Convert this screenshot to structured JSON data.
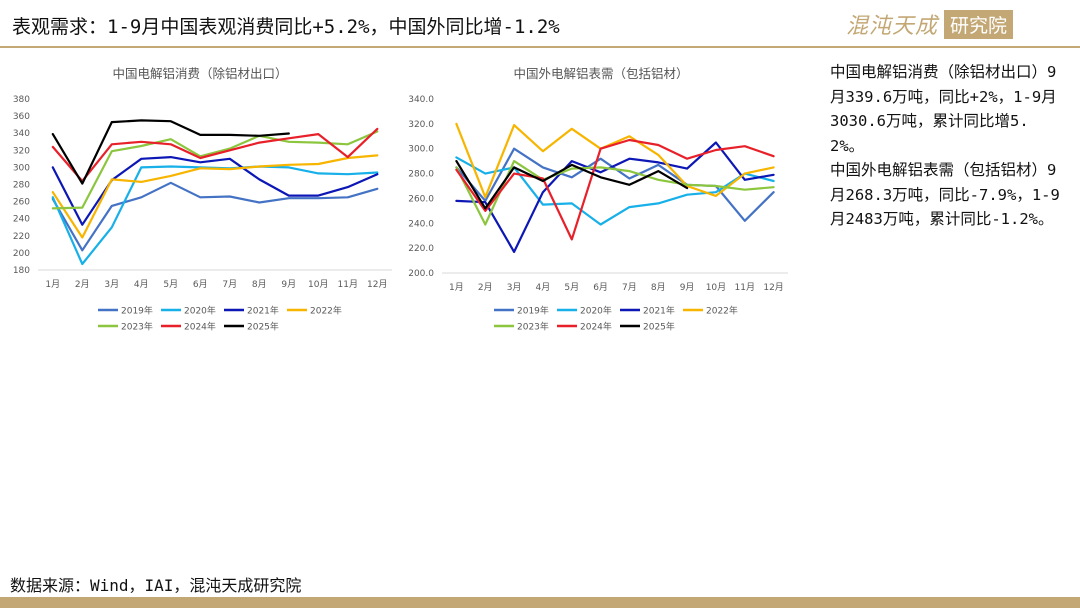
{
  "header": {
    "title": "表观需求：1-9月中国表观消费同比+5.2%，中国外同比增-1.2%",
    "brand_name": "混沌天成",
    "brand_box": "研究院"
  },
  "side_text": {
    "para1": "中国电解铝消费（除铝材出口）9月339.6万吨，同比+2%，1-9月3030.6万吨，累计同比增5.2%。",
    "para2": "中国外电解铝表需（包括铝材）9月268.3万吨，同比-7.9%，1-9月2483万吨，累计同比-1.2%。"
  },
  "footer": {
    "source": "数据来源：Wind，IAI，混沌天成研究院"
  },
  "colors": {
    "2019年": "#4472c4",
    "2020年": "#17b0e8",
    "2021年": "#0c17b5",
    "2022年": "#f7b500",
    "2023年": "#8cc63f",
    "2024年": "#e8202a",
    "2025年": "#000000",
    "brand": "#c3a875"
  },
  "chart_data": [
    {
      "type": "line",
      "title": "中国电解铝消费（除铝材出口）",
      "categories": [
        "1月",
        "2月",
        "3月",
        "4月",
        "5月",
        "6月",
        "7月",
        "8月",
        "9月",
        "10月",
        "11月",
        "12月"
      ],
      "ylim": [
        180,
        380
      ],
      "yticks": [
        "180",
        "200",
        "220",
        "240",
        "260",
        "280",
        "300",
        "320",
        "340",
        "360",
        "380"
      ],
      "grid": false,
      "legend": "bottom",
      "series": [
        {
          "name": "2019年",
          "values": [
            263,
            203,
            255,
            265,
            282,
            265,
            266,
            259,
            264,
            264,
            265,
            275
          ]
        },
        {
          "name": "2020年",
          "values": [
            265,
            187,
            230,
            300,
            301,
            300,
            299,
            301,
            300,
            293,
            292,
            294
          ]
        },
        {
          "name": "2021年",
          "values": [
            300,
            233,
            285,
            310,
            312,
            306,
            310,
            286,
            267,
            267,
            277,
            292
          ]
        },
        {
          "name": "2022年",
          "values": [
            271,
            218,
            286,
            283,
            290,
            299,
            298,
            301,
            303,
            304,
            311,
            314
          ]
        },
        {
          "name": "2023年",
          "values": [
            252,
            253,
            319,
            325,
            333,
            313,
            322,
            337,
            330,
            329,
            327,
            342
          ]
        },
        {
          "name": "2024年",
          "values": [
            324,
            284,
            327,
            330,
            327,
            311,
            320,
            329,
            334,
            339,
            312,
            345
          ]
        },
        {
          "name": "2025年",
          "values": [
            339,
            281,
            353,
            355,
            354,
            338,
            338,
            337,
            339.6,
            null,
            null,
            null
          ]
        }
      ]
    },
    {
      "type": "line",
      "title": "中国外电解铝表需（包括铝材）",
      "categories": [
        "1月",
        "2月",
        "3月",
        "4月",
        "5月",
        "6月",
        "7月",
        "8月",
        "9月",
        "10月",
        "11月",
        "12月"
      ],
      "ylim": [
        200,
        340
      ],
      "yticks": [
        "200.0",
        "220.0",
        "240.0",
        "260.0",
        "280.0",
        "300.0",
        "320.0",
        "340.0"
      ],
      "grid": false,
      "legend": "bottom",
      "series": [
        {
          "name": "2019年",
          "values": [
            285,
            258,
            300,
            285,
            277,
            292,
            276,
            287,
            271,
            270,
            242,
            265
          ]
        },
        {
          "name": "2020年",
          "values": [
            293,
            280,
            285,
            255,
            256,
            239,
            253,
            256,
            263,
            265,
            280,
            274
          ]
        },
        {
          "name": "2021年",
          "values": [
            258,
            257,
            217,
            265,
            290,
            281,
            292,
            289,
            284,
            305,
            275,
            279
          ]
        },
        {
          "name": "2022年",
          "values": [
            320,
            261,
            319,
            298,
            316,
            300,
            310,
            295,
            270,
            262,
            280,
            285
          ]
        },
        {
          "name": "2023年",
          "values": [
            285,
            239,
            290,
            275,
            284,
            285,
            282,
            275,
            271,
            270,
            267,
            269
          ]
        },
        {
          "name": "2024年",
          "values": [
            283,
            250,
            280,
            276,
            227,
            300,
            307,
            303,
            292,
            299,
            302,
            294
          ]
        },
        {
          "name": "2025年",
          "values": [
            290,
            252,
            285,
            274,
            287,
            277,
            271,
            282,
            268.3,
            null,
            null,
            null
          ]
        }
      ]
    }
  ]
}
